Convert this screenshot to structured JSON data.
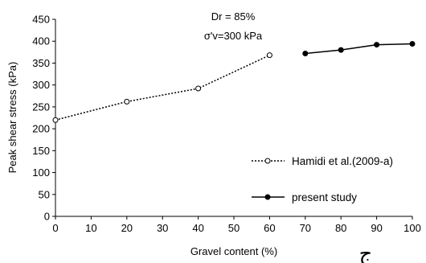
{
  "chart_data": {
    "type": "line",
    "xlabel": "Gravel content (%)",
    "ylabel": "Peak shear stress (kPa)",
    "xlim": [
      0,
      100
    ],
    "ylim": [
      0,
      450
    ],
    "x_ticks": [
      0,
      10,
      20,
      30,
      40,
      50,
      60,
      70,
      80,
      90,
      100
    ],
    "y_ticks": [
      0,
      50,
      100,
      150,
      200,
      250,
      300,
      350,
      400,
      450
    ],
    "grid": false,
    "legend_position": "right",
    "annotations": [
      "Dr = 85%",
      "σ'v=300 kPa"
    ],
    "series": [
      {
        "name": "Hamidi et al.(2009-a)",
        "line": "dotted",
        "marker": "open-circle",
        "x": [
          0,
          20,
          40,
          60
        ],
        "y": [
          220,
          262,
          292,
          368
        ]
      },
      {
        "name": "present study",
        "line": "solid",
        "marker": "filled-circle",
        "x": [
          70,
          80,
          90,
          100
        ],
        "y": [
          372,
          380,
          392,
          394
        ]
      }
    ]
  },
  "corner_mark": "ج"
}
